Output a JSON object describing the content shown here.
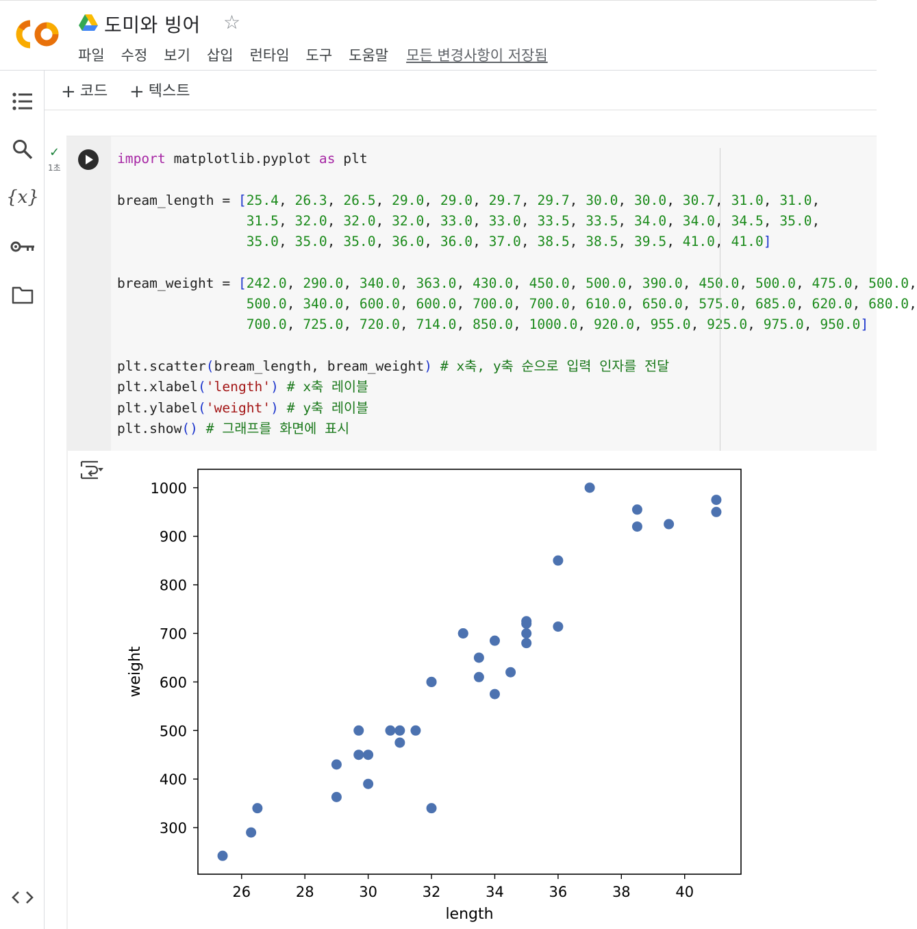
{
  "app": {
    "title": "도미와 빙어",
    "menu": [
      "파일",
      "수정",
      "보기",
      "삽입",
      "런타임",
      "도구",
      "도움말"
    ],
    "save_status": "모든 변경사항이 저장됨"
  },
  "toolbar": {
    "add_code": "코드",
    "add_text": "텍스트"
  },
  "sidebar": {
    "items": [
      "table-of-contents-icon",
      "search-icon",
      "variables-icon",
      "secrets-key-icon",
      "files-folder-icon",
      "code-snippets-icon"
    ]
  },
  "cell": {
    "exec_time": "1초",
    "code_lines": [
      [
        [
          "kw",
          "import"
        ],
        [
          "t",
          " matplotlib.pyplot "
        ],
        [
          "kw",
          "as"
        ],
        [
          "t",
          " plt"
        ]
      ],
      [],
      [
        [
          "t",
          "bream_length = "
        ],
        [
          "br",
          "["
        ],
        [
          "num",
          "25.4"
        ],
        [
          "t",
          ", "
        ],
        [
          "num",
          "26.3"
        ],
        [
          "t",
          ", "
        ],
        [
          "num",
          "26.5"
        ],
        [
          "t",
          ", "
        ],
        [
          "num",
          "29.0"
        ],
        [
          "t",
          ", "
        ],
        [
          "num",
          "29.0"
        ],
        [
          "t",
          ", "
        ],
        [
          "num",
          "29.7"
        ],
        [
          "t",
          ", "
        ],
        [
          "num",
          "29.7"
        ],
        [
          "t",
          ", "
        ],
        [
          "num",
          "30.0"
        ],
        [
          "t",
          ", "
        ],
        [
          "num",
          "30.0"
        ],
        [
          "t",
          ", "
        ],
        [
          "num",
          "30.7"
        ],
        [
          "t",
          ", "
        ],
        [
          "num",
          "31.0"
        ],
        [
          "t",
          ", "
        ],
        [
          "num",
          "31.0"
        ],
        [
          "t",
          ","
        ]
      ],
      [
        [
          "t",
          "                "
        ],
        [
          "num",
          "31.5"
        ],
        [
          "t",
          ", "
        ],
        [
          "num",
          "32.0"
        ],
        [
          "t",
          ", "
        ],
        [
          "num",
          "32.0"
        ],
        [
          "t",
          ", "
        ],
        [
          "num",
          "32.0"
        ],
        [
          "t",
          ", "
        ],
        [
          "num",
          "33.0"
        ],
        [
          "t",
          ", "
        ],
        [
          "num",
          "33.0"
        ],
        [
          "t",
          ", "
        ],
        [
          "num",
          "33.5"
        ],
        [
          "t",
          ", "
        ],
        [
          "num",
          "33.5"
        ],
        [
          "t",
          ", "
        ],
        [
          "num",
          "34.0"
        ],
        [
          "t",
          ", "
        ],
        [
          "num",
          "34.0"
        ],
        [
          "t",
          ", "
        ],
        [
          "num",
          "34.5"
        ],
        [
          "t",
          ", "
        ],
        [
          "num",
          "35.0"
        ],
        [
          "t",
          ","
        ]
      ],
      [
        [
          "t",
          "                "
        ],
        [
          "num",
          "35.0"
        ],
        [
          "t",
          ", "
        ],
        [
          "num",
          "35.0"
        ],
        [
          "t",
          ", "
        ],
        [
          "num",
          "35.0"
        ],
        [
          "t",
          ", "
        ],
        [
          "num",
          "36.0"
        ],
        [
          "t",
          ", "
        ],
        [
          "num",
          "36.0"
        ],
        [
          "t",
          ", "
        ],
        [
          "num",
          "37.0"
        ],
        [
          "t",
          ", "
        ],
        [
          "num",
          "38.5"
        ],
        [
          "t",
          ", "
        ],
        [
          "num",
          "38.5"
        ],
        [
          "t",
          ", "
        ],
        [
          "num",
          "39.5"
        ],
        [
          "t",
          ", "
        ],
        [
          "num",
          "41.0"
        ],
        [
          "t",
          ", "
        ],
        [
          "num",
          "41.0"
        ],
        [
          "br",
          "]"
        ]
      ],
      [],
      [
        [
          "t",
          "bream_weight = "
        ],
        [
          "br",
          "["
        ],
        [
          "num",
          "242.0"
        ],
        [
          "t",
          ", "
        ],
        [
          "num",
          "290.0"
        ],
        [
          "t",
          ", "
        ],
        [
          "num",
          "340.0"
        ],
        [
          "t",
          ", "
        ],
        [
          "num",
          "363.0"
        ],
        [
          "t",
          ", "
        ],
        [
          "num",
          "430.0"
        ],
        [
          "t",
          ", "
        ],
        [
          "num",
          "450.0"
        ],
        [
          "t",
          ", "
        ],
        [
          "num",
          "500.0"
        ],
        [
          "t",
          ", "
        ],
        [
          "num",
          "390.0"
        ],
        [
          "t",
          ", "
        ],
        [
          "num",
          "450.0"
        ],
        [
          "t",
          ", "
        ],
        [
          "num",
          "500.0"
        ],
        [
          "t",
          ", "
        ],
        [
          "num",
          "475.0"
        ],
        [
          "t",
          ", "
        ],
        [
          "num",
          "500.0"
        ],
        [
          "t",
          ","
        ]
      ],
      [
        [
          "t",
          "                "
        ],
        [
          "num",
          "500.0"
        ],
        [
          "t",
          ", "
        ],
        [
          "num",
          "340.0"
        ],
        [
          "t",
          ", "
        ],
        [
          "num",
          "600.0"
        ],
        [
          "t",
          ", "
        ],
        [
          "num",
          "600.0"
        ],
        [
          "t",
          ", "
        ],
        [
          "num",
          "700.0"
        ],
        [
          "t",
          ", "
        ],
        [
          "num",
          "700.0"
        ],
        [
          "t",
          ", "
        ],
        [
          "num",
          "610.0"
        ],
        [
          "t",
          ", "
        ],
        [
          "num",
          "650.0"
        ],
        [
          "t",
          ", "
        ],
        [
          "num",
          "575.0"
        ],
        [
          "t",
          ", "
        ],
        [
          "num",
          "685.0"
        ],
        [
          "t",
          ", "
        ],
        [
          "num",
          "620.0"
        ],
        [
          "t",
          ", "
        ],
        [
          "num",
          "680.0"
        ],
        [
          "t",
          ","
        ]
      ],
      [
        [
          "t",
          "                "
        ],
        [
          "num",
          "700.0"
        ],
        [
          "t",
          ", "
        ],
        [
          "num",
          "725.0"
        ],
        [
          "t",
          ", "
        ],
        [
          "num",
          "720.0"
        ],
        [
          "t",
          ", "
        ],
        [
          "num",
          "714.0"
        ],
        [
          "t",
          ", "
        ],
        [
          "num",
          "850.0"
        ],
        [
          "t",
          ", "
        ],
        [
          "num",
          "1000.0"
        ],
        [
          "t",
          ", "
        ],
        [
          "num",
          "920.0"
        ],
        [
          "t",
          ", "
        ],
        [
          "num",
          "955.0"
        ],
        [
          "t",
          ", "
        ],
        [
          "num",
          "925.0"
        ],
        [
          "t",
          ", "
        ],
        [
          "num",
          "975.0"
        ],
        [
          "t",
          ", "
        ],
        [
          "num",
          "950.0"
        ],
        [
          "br",
          "]"
        ]
      ],
      [],
      [
        [
          "t",
          "plt.scatter"
        ],
        [
          "br",
          "("
        ],
        [
          "t",
          "bream_length, bream_weight"
        ],
        [
          "br",
          ")"
        ],
        [
          "cm",
          " # x축, y축 순으로 입력 인자를 전달"
        ]
      ],
      [
        [
          "t",
          "plt.xlabel"
        ],
        [
          "br",
          "("
        ],
        [
          "st",
          "'length'"
        ],
        [
          "br",
          ")"
        ],
        [
          "cm",
          " # x축 레이블"
        ]
      ],
      [
        [
          "t",
          "plt.ylabel"
        ],
        [
          "br",
          "("
        ],
        [
          "st",
          "'weight'"
        ],
        [
          "br",
          ")"
        ],
        [
          "cm",
          " # y축 레이블"
        ]
      ],
      [
        [
          "t",
          "plt.show"
        ],
        [
          "br",
          "()"
        ],
        [
          "cm",
          " # 그래프를 화면에 표시"
        ]
      ]
    ]
  },
  "chart_data": {
    "type": "scatter",
    "xlabel": "length",
    "ylabel": "weight",
    "x": [
      25.4,
      26.3,
      26.5,
      29.0,
      29.0,
      29.7,
      29.7,
      30.0,
      30.0,
      30.7,
      31.0,
      31.0,
      31.5,
      32.0,
      32.0,
      32.0,
      33.0,
      33.0,
      33.5,
      33.5,
      34.0,
      34.0,
      34.5,
      35.0,
      35.0,
      35.0,
      35.0,
      36.0,
      36.0,
      37.0,
      38.5,
      38.5,
      39.5,
      41.0,
      41.0
    ],
    "y": [
      242.0,
      290.0,
      340.0,
      363.0,
      430.0,
      450.0,
      500.0,
      390.0,
      450.0,
      500.0,
      475.0,
      500.0,
      500.0,
      340.0,
      600.0,
      600.0,
      700.0,
      700.0,
      610.0,
      650.0,
      575.0,
      685.0,
      620.0,
      680.0,
      700.0,
      725.0,
      720.0,
      714.0,
      850.0,
      1000.0,
      920.0,
      955.0,
      925.0,
      975.0,
      950.0
    ],
    "xticks": [
      26,
      28,
      30,
      32,
      34,
      36,
      38,
      40
    ],
    "yticks": [
      300,
      400,
      500,
      600,
      700,
      800,
      900,
      1000
    ],
    "xlim": [
      24.62,
      41.78
    ],
    "ylim": [
      204.1,
      1037.9
    ],
    "marker_color": "#4c72b0",
    "grid": false
  }
}
